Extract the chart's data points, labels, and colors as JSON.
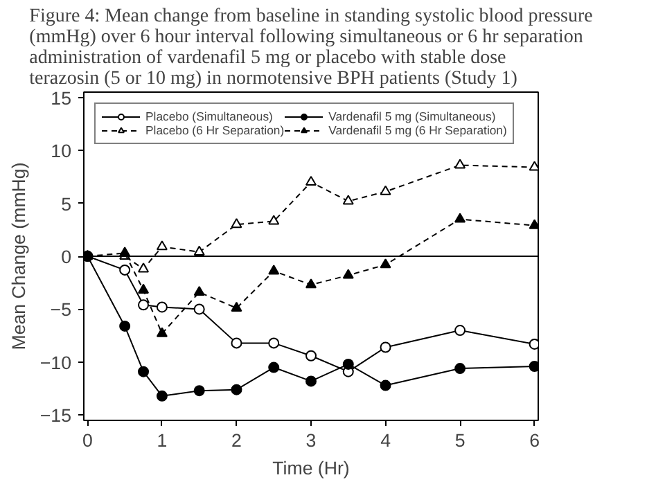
{
  "chart_data": {
    "type": "line",
    "title": "Figure 4: Mean change from baseline in standing systolic blood pressure\n(mmHg) over 6 hour interval following simultaneous or 6 hr separation\nadministration of vardenafil 5 mg or placebo with stable dose\nterazosin (5 or 10 mg) in normotensive BPH patients (Study 1)",
    "xlabel": "Time (Hr)",
    "ylabel": "Mean Change (mmHg)",
    "x": [
      0,
      0.5,
      0.75,
      1,
      1.5,
      2,
      2.5,
      3,
      3.5,
      4,
      5,
      6
    ],
    "xlim": [
      -0.05,
      6.05
    ],
    "xticks": [
      0,
      1,
      2,
      3,
      4,
      5,
      6
    ],
    "ylim": [
      -15.5,
      15.5
    ],
    "yticks": [
      -15,
      -10,
      -5,
      0,
      5,
      10,
      15
    ],
    "grid": false,
    "legend": "top left",
    "ref_lines": [
      {
        "axis": "y",
        "value": 0,
        "color": "#000000",
        "line_style": "solid"
      }
    ],
    "series": [
      {
        "name": "Placebo (Simultaneous)",
        "color": "#000000",
        "marker": "circle",
        "line_style": "solid",
        "values": [
          0,
          -1.3,
          -4.6,
          -4.8,
          -5,
          -8.2,
          -8.2,
          -9.4,
          -10.9,
          -8.6,
          -7,
          -8.3
        ]
      },
      {
        "name": "Vardenafil 5 mg (Simultaneous)",
        "color": "#000000",
        "marker": "circle",
        "line_style": "solid",
        "values": [
          0,
          -6.6,
          -10.9,
          -13.2,
          -12.7,
          -12.6,
          -10.5,
          -11.8,
          -10.2,
          -12.2,
          -10.6,
          -10.4
        ]
      },
      {
        "name": "Placebo (6 Hr Separation)",
        "color": "#000000",
        "marker": "triangle",
        "line_style": "dashed",
        "values": [
          0,
          0,
          -1.2,
          0.9,
          0.4,
          3,
          3.3,
          7,
          5.2,
          6.1,
          8.6,
          8.4
        ]
      },
      {
        "name": "Vardenafil 5 mg (6 Hr Separation)",
        "color": "#000000",
        "marker": "triangle",
        "line_style": "dashed",
        "values": [
          0,
          0.3,
          -3.2,
          -7.3,
          -3.4,
          -4.9,
          -1.4,
          -2.7,
          -1.8,
          -0.8,
          3.5,
          2.9
        ]
      }
    ]
  }
}
